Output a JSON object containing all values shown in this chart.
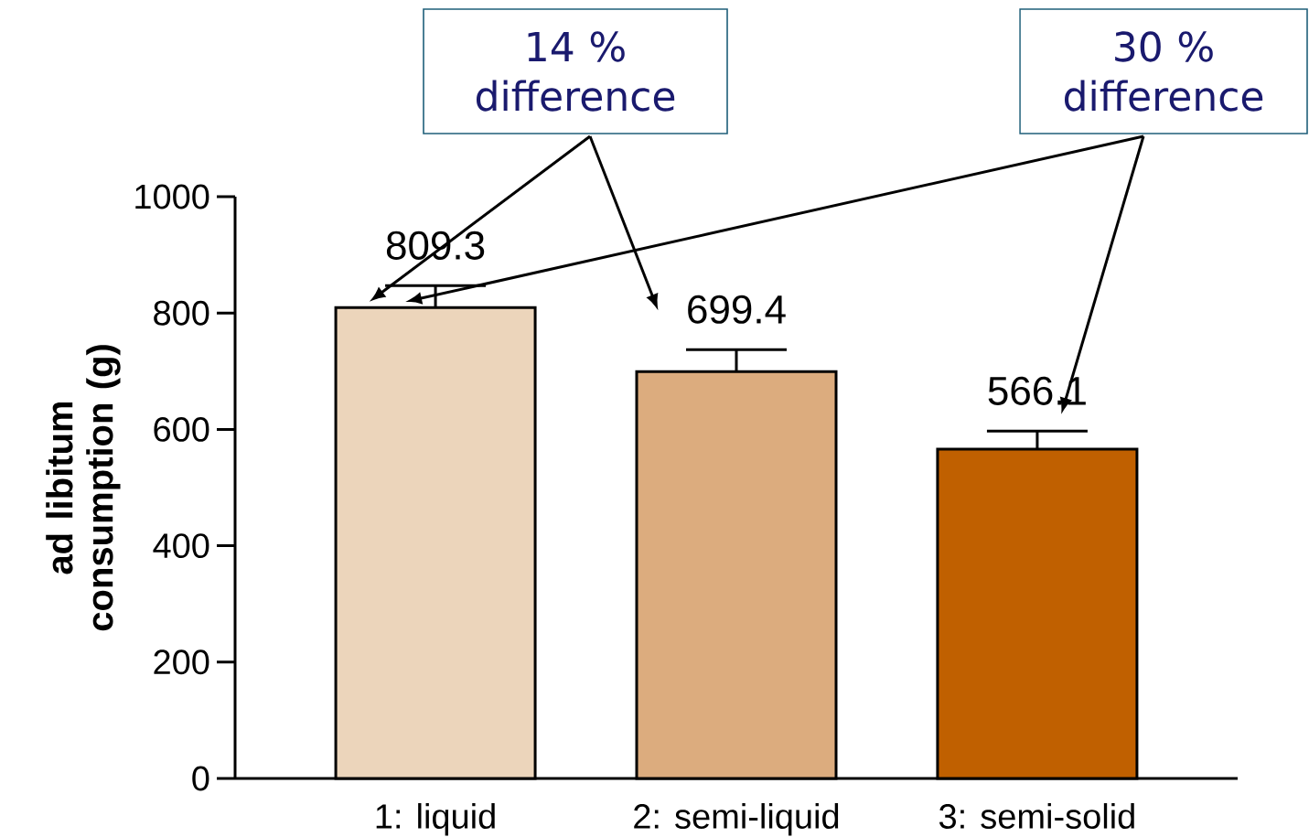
{
  "chart_data": {
    "type": "bar",
    "ylabel": "ad libitum consumption (g)",
    "categories": [
      "1: liquid",
      "2: semi-liquid",
      "3: semi-solid"
    ],
    "values": [
      809.3,
      699.4,
      566.1
    ],
    "colors": [
      "#ecd5bb",
      "#dcac7e",
      "#c06000"
    ],
    "errors": [
      [
        809.3,
        847
      ],
      [
        699.4,
        737
      ],
      [
        566.1,
        597
      ]
    ],
    "data_labels": true,
    "ylim": [
      0,
      1000
    ],
    "yticks": [
      0,
      200,
      400,
      600,
      800,
      1000
    ],
    "annotations": [
      "14 % difference",
      "30 % difference"
    ]
  }
}
